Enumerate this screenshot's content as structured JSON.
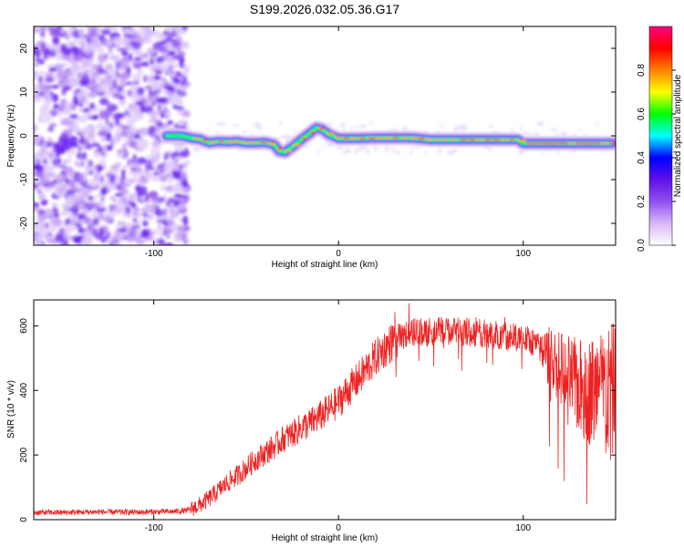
{
  "figure": {
    "title": "S199.2026.032.05.36.G17"
  },
  "chart_data": [
    {
      "type": "heatmap",
      "title": "S199.2026.032.05.36.G17",
      "xlabel": "Height of straight line (km)",
      "ylabel": "Frequency (Hz)",
      "xlim": [
        -165,
        150
      ],
      "ylim": [
        -25,
        25
      ],
      "xticks": [
        -100,
        0,
        100
      ],
      "xtick_labels": [
        "-100",
        "0",
        "100"
      ],
      "yticks": [
        -20,
        -10,
        0,
        10,
        20
      ],
      "ytick_labels": [
        "-20",
        "-10",
        "0",
        "10",
        "20"
      ],
      "noise_region_x": [
        -165,
        -82
      ],
      "ridge": {
        "x": [
          -93,
          -85,
          -80,
          -75,
          -70,
          -65,
          -60,
          -55,
          -50,
          -45,
          -40,
          -35,
          -32,
          -29,
          -25,
          -20,
          -15,
          -12,
          -9,
          -5,
          0,
          10,
          20,
          30,
          40,
          50,
          60,
          70,
          80,
          90,
          97,
          100,
          110,
          120,
          130,
          140,
          148
        ],
        "y": [
          0,
          0,
          -0.5,
          -0.8,
          -1.6,
          -1.3,
          -1.4,
          -1.3,
          -1.6,
          -1.6,
          -1.5,
          -2.0,
          -3.5,
          -3.7,
          -2.5,
          -0.8,
          0.8,
          1.8,
          1.5,
          0.3,
          -0.6,
          -0.6,
          -0.5,
          -0.5,
          -0.5,
          -0.9,
          -0.9,
          -0.9,
          -0.9,
          -0.9,
          -0.9,
          -1.7,
          -1.7,
          -1.7,
          -1.7,
          -1.7,
          -1.7
        ]
      },
      "grid": false,
      "colorbar": {
        "label": "Normalized spectral amplitude",
        "range": [
          0,
          1
        ],
        "ticks": [
          0,
          0.2,
          0.4,
          0.6,
          0.8
        ],
        "tick_labels": [
          "0.0",
          "0.2",
          "0.4",
          "0.6",
          "0.8"
        ],
        "colors": [
          "#ffffff",
          "#d8b8f8",
          "#9050f0",
          "#6010e8",
          "#0000ff",
          "#00ffff",
          "#00ff00",
          "#ffff00",
          "#ff8000",
          "#ff0000",
          "#ff0080"
        ]
      }
    },
    {
      "type": "line",
      "xlabel": "Height of straight line (km)",
      "ylabel": "SNR (10 * v/v)",
      "xlim": [
        -165,
        150
      ],
      "ylim": [
        0,
        680
      ],
      "xticks": [
        -100,
        0,
        100
      ],
      "xtick_labels": [
        "-100",
        "0",
        "100"
      ],
      "yticks": [
        0,
        200,
        400,
        600
      ],
      "ytick_labels": [
        "0",
        "200",
        "400",
        "600"
      ],
      "grid": false,
      "color": "#ee2222",
      "series": [
        {
          "x": [
            -165,
            -150,
            -130,
            -110,
            -90,
            -82,
            -75,
            -70,
            -65,
            -60,
            -55,
            -50,
            -45,
            -40,
            -35,
            -30,
            -25,
            -20,
            -15,
            -10,
            -5,
            0,
            5,
            10,
            15,
            20,
            25,
            30,
            35,
            40,
            50,
            60,
            70,
            80,
            90,
            100,
            105,
            110,
            115,
            120,
            125,
            130,
            135,
            140,
            145,
            150
          ],
          "values": [
            22,
            22,
            24,
            23,
            25,
            28,
            45,
            65,
            90,
            115,
            135,
            160,
            185,
            205,
            225,
            250,
            265,
            285,
            300,
            320,
            340,
            365,
            400,
            430,
            465,
            500,
            530,
            555,
            570,
            580,
            580,
            585,
            580,
            575,
            570,
            560,
            550,
            525,
            500,
            470,
            440,
            410,
            400,
            395,
            400,
            395
          ]
        }
      ]
    }
  ]
}
